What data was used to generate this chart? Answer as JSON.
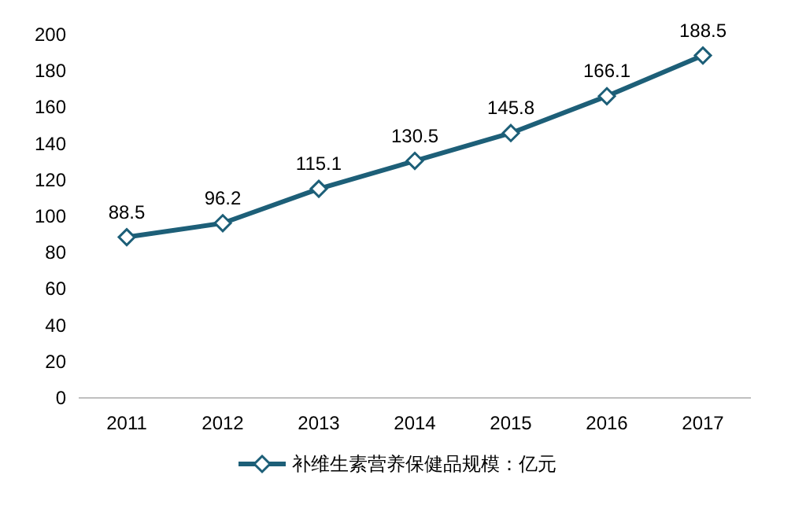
{
  "chart_data": {
    "type": "line",
    "categories": [
      "2011",
      "2012",
      "2013",
      "2014",
      "2015",
      "2016",
      "2017"
    ],
    "series": [
      {
        "name": "补维生素营养保健品规模：亿元",
        "color": "#1d5f78",
        "values": [
          88.5,
          96.2,
          115.1,
          130.5,
          145.8,
          166.1,
          188.5
        ]
      }
    ],
    "ylim": [
      0,
      200
    ],
    "yticks": [
      0,
      20,
      40,
      60,
      80,
      100,
      120,
      140,
      160,
      180,
      200
    ],
    "data_labels": true,
    "legend": "bottom",
    "marker": "diamond"
  }
}
